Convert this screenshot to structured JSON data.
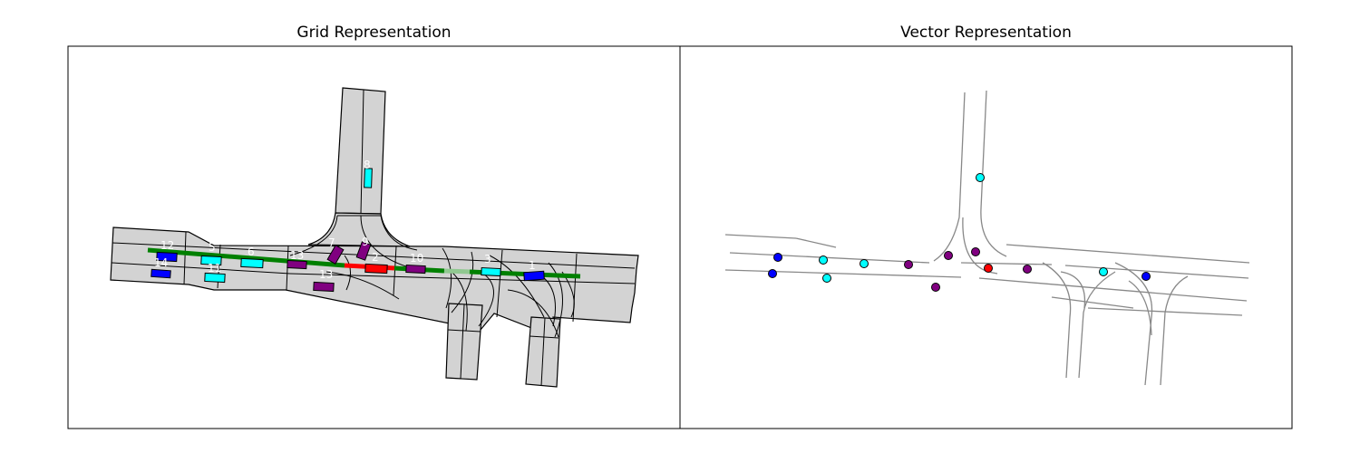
{
  "figure": {
    "left_title": "Grid Representation",
    "right_title": "Vector Representation"
  },
  "colors": {
    "road_fill": "#d3d3d3",
    "road_edge": "#000000",
    "route": "#008000",
    "route_faded": "#90c890",
    "ego": "#ff0000",
    "vehicle_blue": "#0000ff",
    "vehicle_cyan": "#00ffff",
    "vehicle_purple": "#800080",
    "lane_line": "#888888",
    "id_text": "#ffffff"
  },
  "agent_ids": [
    "12",
    "5",
    "6",
    "13",
    "7",
    "8",
    "2",
    "10",
    "3",
    "11",
    "9",
    "1",
    "14"
  ]
}
